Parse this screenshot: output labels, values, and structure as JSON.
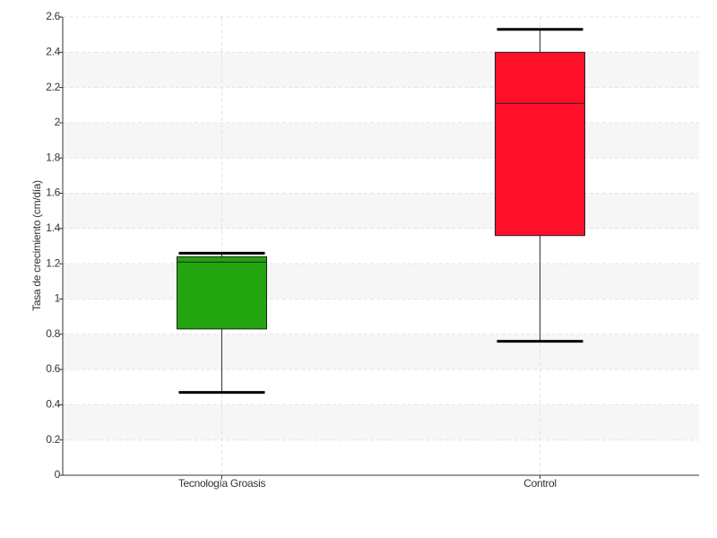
{
  "chart_data": {
    "type": "box",
    "y_label": "Tasa de crecimiento (cm/día)",
    "categories": [
      "Tecnología Groasis",
      "Control"
    ],
    "boxes": [
      {
        "min": 0.47,
        "q1": 0.83,
        "median": 1.21,
        "q3": 1.24,
        "max": 1.26,
        "color": "#22a50f"
      },
      {
        "min": 0.76,
        "q1": 1.36,
        "median": 2.11,
        "q3": 2.4,
        "max": 2.53,
        "color": "#ff0f2a"
      }
    ],
    "ylim": [
      0,
      2.6
    ],
    "yticks": [
      0,
      0.2,
      0.4,
      0.6,
      0.8,
      1,
      1.2,
      1.4,
      1.6,
      1.8,
      2,
      2.2,
      2.4,
      2.6
    ],
    "grid": true
  }
}
